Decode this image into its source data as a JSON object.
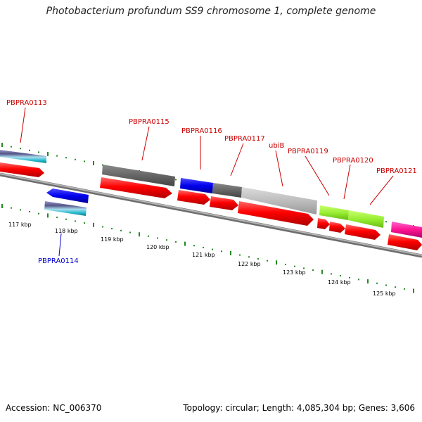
{
  "title": "Photobacterium profundum SS9 chromosome 1, complete genome",
  "footer": {
    "accession": "Accession: NC_006370",
    "summary": "Topology: circular; Length: 4,085,304 bp; Genes: 3,606"
  },
  "scale_labels": [
    "117 kbp",
    "118 kbp",
    "119 kbp",
    "120 kbp",
    "121 kbp",
    "122 kbp",
    "123 kbp",
    "124 kbp",
    "125 kbp"
  ],
  "gene_labels": {
    "PBPRA0113": "PBPRA0113",
    "PBPRA0114": "PBPRA0114",
    "PBPRA0115": "PBPRA0115",
    "PBPRA0116": "PBPRA0116",
    "PBPRA0117": "PBPRA0117",
    "ubiB": "ubiB",
    "PBPRA0119": "PBPRA0119",
    "PBPRA0120": "PBPRA0120",
    "PBPRA0121": "PBPRA0121"
  },
  "colors": {
    "forward_label": "#cc0000",
    "reverse_label": "#0000cc",
    "tick": "#228B22",
    "backbone": "#888888",
    "cds_arrow": "#ff0000"
  }
}
